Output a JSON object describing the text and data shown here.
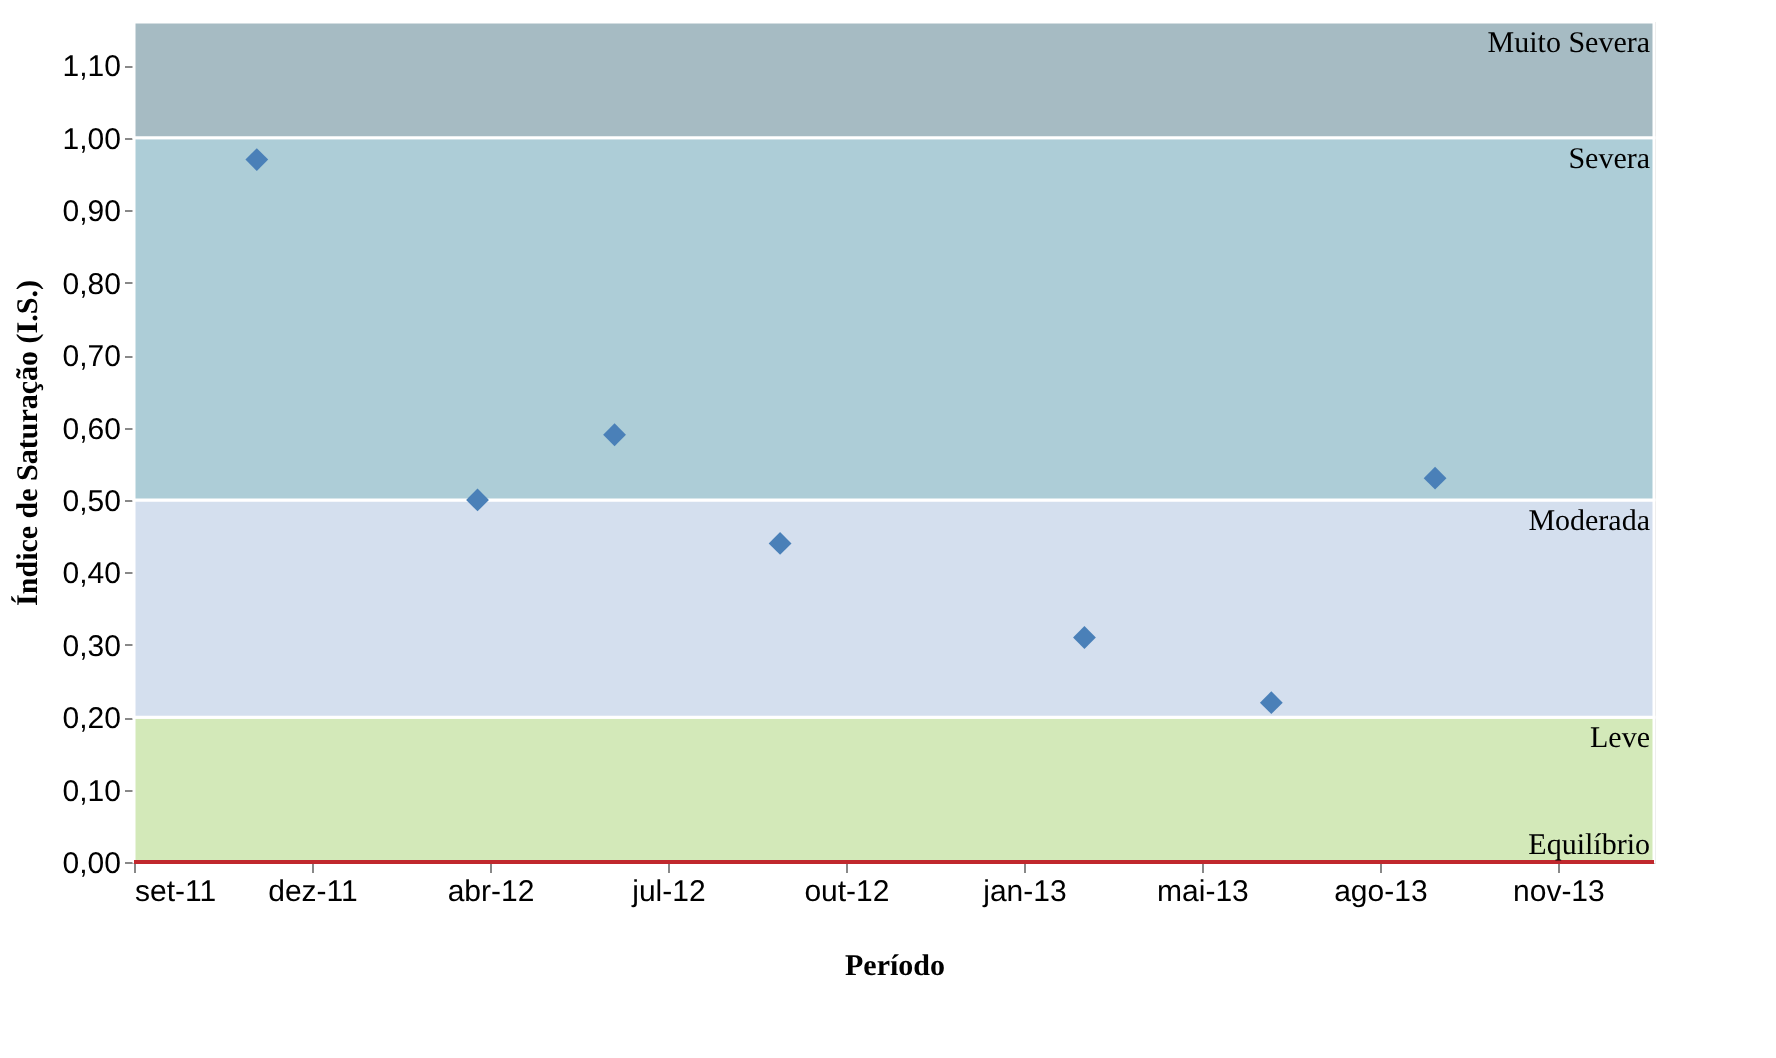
{
  "chart_data": {
    "type": "scatter",
    "xlabel": "Período",
    "ylabel": "Índice de Saturação (I.S.)",
    "x": [
      "2011-11-22",
      "2012-03-25",
      "2012-06-10",
      "2012-09-11",
      "2013-03-01",
      "2013-06-14",
      "2013-09-14"
    ],
    "series": [
      {
        "color": "#4a80b8",
        "values": [
          0.97,
          0.5,
          0.59,
          0.44,
          0.31,
          0.22,
          0.53
        ]
      }
    ],
    "marker": "diamond",
    "xlim": [
      "2011-09-14",
      "2014-01-15"
    ],
    "xticks": [
      {
        "value": "2011-09-14",
        "label": "set-11"
      },
      {
        "value": "2011-12-23",
        "label": "dez-11"
      },
      {
        "value": "2012-04-01",
        "label": "abr-12"
      },
      {
        "value": "2012-07-10",
        "label": "jul-12"
      },
      {
        "value": "2012-10-18",
        "label": "out-12"
      },
      {
        "value": "2013-01-26",
        "label": "jan-13"
      },
      {
        "value": "2013-05-06",
        "label": "mai-13"
      },
      {
        "value": "2013-08-14",
        "label": "ago-13"
      },
      {
        "value": "2013-11-22",
        "label": "nov-13"
      }
    ],
    "ylim": [
      0,
      1.16
    ],
    "yticks": [
      {
        "value": 0,
        "label": "0,00"
      },
      {
        "value": 0.1,
        "label": "0,10"
      },
      {
        "value": 0.2,
        "label": "0,20"
      },
      {
        "value": 0.3,
        "label": "0,30"
      },
      {
        "value": 0.4,
        "label": "0,40"
      },
      {
        "value": 0.5,
        "label": "0,50"
      },
      {
        "value": 0.6,
        "label": "0,60"
      },
      {
        "value": 0.7,
        "label": "0,70"
      },
      {
        "value": 0.8,
        "label": "0,80"
      },
      {
        "value": 0.9,
        "label": "0,90"
      },
      {
        "value": 1.0,
        "label": "1,00"
      },
      {
        "value": 1.1,
        "label": "1,10"
      }
    ],
    "bands": [
      {
        "axis": "y",
        "from": 0,
        "to": 0.2,
        "label": "Leve",
        "color": "#d3e9b9"
      },
      {
        "axis": "y",
        "from": 0.2,
        "to": 0.5,
        "label": "Moderada",
        "color": "#d4dfee"
      },
      {
        "axis": "y",
        "from": 0.5,
        "to": 1.0,
        "label": "Severa",
        "color": "#adcdd7"
      },
      {
        "axis": "y",
        "from": 1.0,
        "to": 1.16,
        "label": "Muito Severa",
        "color": "#a6bbc3"
      }
    ],
    "ref_lines": [
      {
        "axis": "y",
        "value": 0,
        "label": "Equilíbrio",
        "color": "#c0282d",
        "line_style": "solid"
      }
    ]
  }
}
